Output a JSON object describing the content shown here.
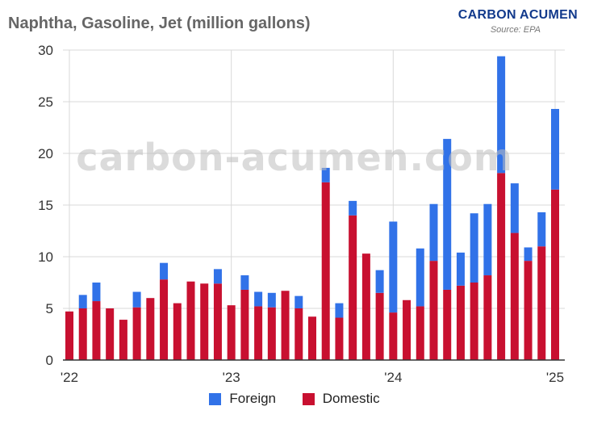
{
  "header": {
    "title": "Naphtha, Gasoline, Jet (million gallons)",
    "brand": "CARBON ACUMEN",
    "source": "Source: EPA",
    "watermark": "carbon-acumen.com"
  },
  "colors": {
    "foreign": "#3172e8",
    "domestic": "#c81030",
    "grid": "#d9d9d9",
    "axis": "#333333",
    "tick_text": "#333333"
  },
  "chart_data": {
    "type": "bar",
    "stacked": true,
    "x_tick_labels": [
      "'22",
      "'23",
      "'24",
      "'25"
    ],
    "x_tick_positions": [
      "2022-01",
      "2023-01",
      "2024-01",
      "2025-01"
    ],
    "categories": [
      "2022-01",
      "2022-02",
      "2022-03",
      "2022-04",
      "2022-05",
      "2022-06",
      "2022-07",
      "2022-08",
      "2022-09",
      "2022-10",
      "2022-11",
      "2022-12",
      "2023-01",
      "2023-02",
      "2023-03",
      "2023-04",
      "2023-05",
      "2023-06",
      "2023-07",
      "2023-08",
      "2023-09",
      "2023-10",
      "2023-11",
      "2023-12",
      "2024-01",
      "2024-02",
      "2024-03",
      "2024-04",
      "2024-05",
      "2024-06",
      "2024-07",
      "2024-08",
      "2024-09",
      "2024-10",
      "2024-11",
      "2024-12",
      "2025-01"
    ],
    "series": [
      {
        "name": "Domestic",
        "values": [
          4.7,
          5.0,
          5.7,
          5.0,
          3.9,
          5.1,
          6.0,
          7.8,
          5.5,
          7.6,
          7.4,
          7.4,
          5.3,
          6.8,
          5.2,
          5.1,
          6.7,
          5.0,
          4.2,
          17.2,
          4.1,
          14.0,
          10.3,
          6.5,
          4.6,
          5.8,
          5.2,
          9.6,
          6.8,
          7.2,
          7.5,
          8.2,
          18.1,
          12.3,
          9.6,
          11.0,
          16.5
        ]
      },
      {
        "name": "Foreign",
        "values": [
          0,
          1.3,
          1.8,
          0,
          0,
          1.5,
          0,
          1.6,
          0,
          0,
          0,
          1.4,
          0,
          1.4,
          1.4,
          1.4,
          0,
          1.2,
          0,
          1.4,
          1.4,
          1.4,
          0,
          2.2,
          8.8,
          0,
          5.6,
          5.5,
          14.6,
          3.2,
          6.7,
          6.9,
          11.3,
          4.8,
          1.3,
          3.3,
          7.8
        ]
      }
    ],
    "ylim": [
      0,
      30
    ],
    "y_ticks": [
      0,
      5,
      10,
      15,
      20,
      25,
      30
    ],
    "grid": true,
    "legend": "bottom",
    "legend_entries": [
      "Foreign",
      "Domestic"
    ]
  }
}
